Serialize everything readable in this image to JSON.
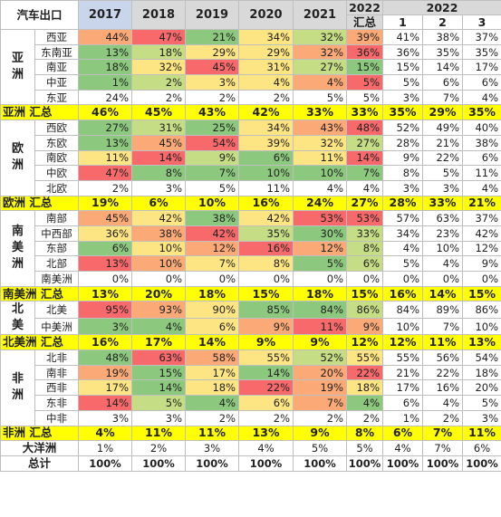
{
  "headers": {
    "title": "汽车出口",
    "years": [
      "2017",
      "2018",
      "2019",
      "2020",
      "2021"
    ],
    "summary_2022_line1": "2022",
    "summary_2022_line2": "汇总",
    "months_year": "2022",
    "months": [
      "1",
      "2",
      "3"
    ]
  },
  "colors": {
    "red": "#f8696b",
    "orange": "#fbaa77",
    "yellow": "#fee583",
    "lightgreen": "#c5dd84",
    "green": "#8cc97e",
    "totals_band": "#ffff00",
    "header_gray": "#d9d9d9",
    "header_blue": "#c9d5ea"
  },
  "groups": [
    {
      "region": "亚洲",
      "rows": [
        {
          "name": "西亚",
          "vals": [
            "44%",
            "47%",
            "21%",
            "34%",
            "32%",
            "39%"
          ],
          "colors": [
            "orange",
            "red",
            "green",
            "yellow",
            "lightgreen",
            "orange"
          ],
          "months": [
            "41%",
            "38%",
            "37%"
          ]
        },
        {
          "name": "东南亚",
          "vals": [
            "13%",
            "18%",
            "29%",
            "29%",
            "32%",
            "36%"
          ],
          "colors": [
            "green",
            "lightgreen",
            "yellow",
            "yellow",
            "orange",
            "red"
          ],
          "months": [
            "36%",
            "35%",
            "35%"
          ]
        },
        {
          "name": "南亚",
          "vals": [
            "18%",
            "32%",
            "45%",
            "31%",
            "27%",
            "15%"
          ],
          "colors": [
            "green",
            "yellow",
            "red",
            "yellow",
            "lightgreen",
            "green"
          ],
          "months": [
            "15%",
            "14%",
            "17%"
          ]
        },
        {
          "name": "中亚",
          "vals": [
            "1%",
            "2%",
            "3%",
            "4%",
            "4%",
            "5%"
          ],
          "colors": [
            "green",
            "lightgreen",
            "yellow",
            "yellow",
            "orange",
            "red"
          ],
          "months": [
            "5%",
            "6%",
            "6%"
          ]
        },
        {
          "name": "东亚",
          "vals": [
            "24%",
            "2%",
            "2%",
            "2%",
            "5%",
            "5%"
          ],
          "colors": [
            "",
            "",
            "",
            "",
            "",
            ""
          ],
          "months": [
            "3%",
            "7%",
            "4%"
          ]
        }
      ],
      "total_label": "亚洲 汇总",
      "total_vals": [
        "46%",
        "45%",
        "43%",
        "42%",
        "33%",
        "33%",
        "35%",
        "29%",
        "35%"
      ]
    },
    {
      "region": "欧洲",
      "rows": [
        {
          "name": "西欧",
          "vals": [
            "27%",
            "31%",
            "25%",
            "34%",
            "43%",
            "48%"
          ],
          "colors": [
            "green",
            "lightgreen",
            "green",
            "yellow",
            "orange",
            "red"
          ],
          "months": [
            "52%",
            "49%",
            "40%"
          ]
        },
        {
          "name": "东欧",
          "vals": [
            "13%",
            "45%",
            "54%",
            "39%",
            "32%",
            "27%"
          ],
          "colors": [
            "green",
            "orange",
            "red",
            "yellow",
            "yellow",
            "lightgreen"
          ],
          "months": [
            "28%",
            "21%",
            "38%"
          ]
        },
        {
          "name": "南欧",
          "vals": [
            "11%",
            "14%",
            "9%",
            "6%",
            "11%",
            "14%"
          ],
          "colors": [
            "yellow",
            "red",
            "lightgreen",
            "green",
            "yellow",
            "red"
          ],
          "months": [
            "9%",
            "22%",
            "6%"
          ]
        },
        {
          "name": "中欧",
          "vals": [
            "47%",
            "8%",
            "7%",
            "10%",
            "10%",
            "7%"
          ],
          "colors": [
            "red",
            "green",
            "green",
            "green",
            "green",
            "green"
          ],
          "months": [
            "8%",
            "5%",
            "11%"
          ]
        },
        {
          "name": "北欧",
          "vals": [
            "2%",
            "3%",
            "5%",
            "11%",
            "4%",
            "4%"
          ],
          "colors": [
            "",
            "",
            "",
            "",
            "",
            ""
          ],
          "months": [
            "3%",
            "3%",
            "4%"
          ]
        }
      ],
      "total_label": "欧洲 汇总",
      "total_vals": [
        "19%",
        "6%",
        "10%",
        "16%",
        "24%",
        "27%",
        "28%",
        "33%",
        "21%"
      ]
    },
    {
      "region": "南美洲",
      "rows": [
        {
          "name": "南部",
          "vals": [
            "45%",
            "42%",
            "38%",
            "42%",
            "53%",
            "53%"
          ],
          "colors": [
            "orange",
            "yellow",
            "green",
            "yellow",
            "red",
            "red"
          ],
          "months": [
            "57%",
            "63%",
            "37%"
          ]
        },
        {
          "name": "中西部",
          "vals": [
            "36%",
            "38%",
            "42%",
            "35%",
            "30%",
            "33%"
          ],
          "colors": [
            "yellow",
            "orange",
            "red",
            "lightgreen",
            "green",
            "lightgreen"
          ],
          "months": [
            "34%",
            "23%",
            "42%"
          ]
        },
        {
          "name": "东部",
          "vals": [
            "6%",
            "10%",
            "12%",
            "16%",
            "12%",
            "8%"
          ],
          "colors": [
            "green",
            "yellow",
            "orange",
            "red",
            "orange",
            "lightgreen"
          ],
          "months": [
            "4%",
            "10%",
            "12%"
          ]
        },
        {
          "name": "北部",
          "vals": [
            "13%",
            "10%",
            "7%",
            "8%",
            "5%",
            "6%"
          ],
          "colors": [
            "red",
            "orange",
            "yellow",
            "yellow",
            "green",
            "lightgreen"
          ],
          "months": [
            "5%",
            "4%",
            "9%"
          ]
        },
        {
          "name": "南美洲",
          "vals": [
            "0%",
            "0%",
            "0%",
            "0%",
            "0%",
            "0%"
          ],
          "colors": [
            "",
            "",
            "",
            "",
            "",
            ""
          ],
          "months": [
            "0%",
            "0%",
            "0%"
          ]
        }
      ],
      "total_label": "南美洲 汇总",
      "total_vals": [
        "13%",
        "20%",
        "18%",
        "15%",
        "18%",
        "15%",
        "16%",
        "14%",
        "15%"
      ]
    },
    {
      "region": "北美",
      "rows": [
        {
          "name": "北美",
          "vals": [
            "95%",
            "93%",
            "90%",
            "85%",
            "84%",
            "86%"
          ],
          "colors": [
            "red",
            "orange",
            "yellow",
            "green",
            "green",
            "lightgreen"
          ],
          "months": [
            "84%",
            "89%",
            "86%"
          ]
        },
        {
          "name": "中美洲",
          "vals": [
            "3%",
            "4%",
            "6%",
            "9%",
            "11%",
            "9%"
          ],
          "colors": [
            "green",
            "green",
            "yellow",
            "orange",
            "red",
            "orange"
          ],
          "months": [
            "10%",
            "7%",
            "10%"
          ]
        }
      ],
      "total_label": "北美洲 汇总",
      "total_vals": [
        "16%",
        "17%",
        "14%",
        "9%",
        "9%",
        "12%",
        "12%",
        "11%",
        "13%"
      ]
    },
    {
      "region": "非洲",
      "rows": [
        {
          "name": "北非",
          "vals": [
            "48%",
            "63%",
            "58%",
            "55%",
            "52%",
            "55%"
          ],
          "colors": [
            "green",
            "red",
            "orange",
            "yellow",
            "lightgreen",
            "yellow"
          ],
          "months": [
            "55%",
            "56%",
            "54%"
          ]
        },
        {
          "name": "南非",
          "vals": [
            "19%",
            "15%",
            "17%",
            "14%",
            "20%",
            "22%"
          ],
          "colors": [
            "orange",
            "green",
            "yellow",
            "green",
            "orange",
            "red"
          ],
          "months": [
            "21%",
            "22%",
            "18%"
          ]
        },
        {
          "name": "西非",
          "vals": [
            "17%",
            "14%",
            "18%",
            "22%",
            "19%",
            "18%"
          ],
          "colors": [
            "yellow",
            "green",
            "yellow",
            "red",
            "orange",
            "yellow"
          ],
          "months": [
            "17%",
            "16%",
            "20%"
          ]
        },
        {
          "name": "东非",
          "vals": [
            "14%",
            "5%",
            "4%",
            "6%",
            "7%",
            "4%"
          ],
          "colors": [
            "red",
            "lightgreen",
            "green",
            "yellow",
            "orange",
            "green"
          ],
          "months": [
            "6%",
            "4%",
            "5%"
          ]
        },
        {
          "name": "中非",
          "vals": [
            "3%",
            "3%",
            "2%",
            "2%",
            "2%",
            "2%"
          ],
          "colors": [
            "",
            "",
            "",
            "",
            "",
            ""
          ],
          "months": [
            "1%",
            "2%",
            "3%"
          ]
        }
      ],
      "total_label": "非洲 汇总",
      "total_vals": [
        "4%",
        "11%",
        "11%",
        "13%",
        "9%",
        "8%",
        "6%",
        "7%",
        "11%"
      ]
    }
  ],
  "oceania": {
    "label": "大洋洲",
    "vals": [
      "1%",
      "2%",
      "3%",
      "4%",
      "5%",
      "5%",
      "4%",
      "7%",
      "6%"
    ]
  },
  "grand_total": {
    "label": "总计",
    "vals": [
      "100%",
      "100%",
      "100%",
      "100%",
      "100%",
      "100%",
      "100%",
      "100%",
      "100%"
    ]
  }
}
